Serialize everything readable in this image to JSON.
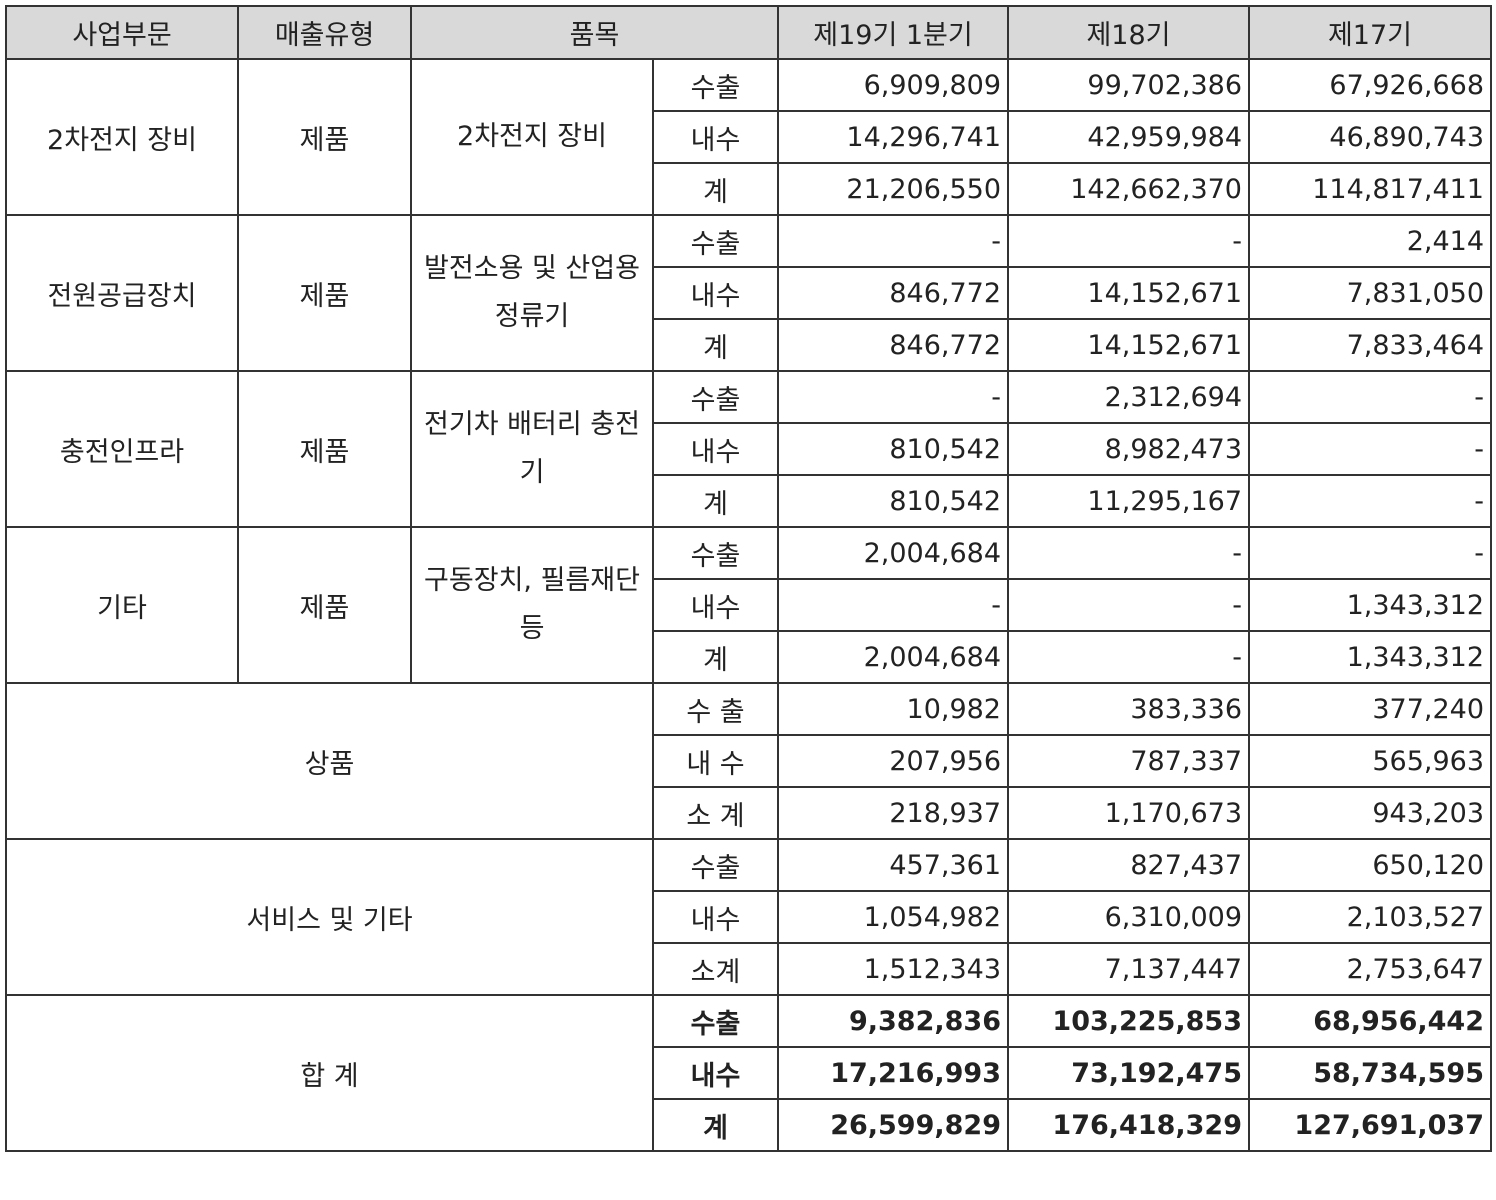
{
  "headers": {
    "segment": "사업부문",
    "sales_type": "매출유형",
    "item": "품목",
    "q19": "제19기 1분기",
    "p18": "제18기",
    "p17": "제17기"
  },
  "groups": [
    {
      "segment": "2차전지 장비",
      "sales_type": "제품",
      "item": "2차전지 장비",
      "rows": [
        {
          "label": "수출",
          "q19": "6,909,809",
          "p18": "99,702,386",
          "p17": "67,926,668"
        },
        {
          "label": "내수",
          "q19": "14,296,741",
          "p18": "42,959,984",
          "p17": "46,890,743"
        },
        {
          "label": "계",
          "q19": "21,206,550",
          "p18": "142,662,370",
          "p17": "114,817,411"
        }
      ]
    },
    {
      "segment": "전원공급장치",
      "sales_type": "제품",
      "item": "발전소용 및 산업용 정류기",
      "rows": [
        {
          "label": "수출",
          "q19": "-",
          "p18": "-",
          "p17": "2,414"
        },
        {
          "label": "내수",
          "q19": "846,772",
          "p18": "14,152,671",
          "p17": "7,831,050"
        },
        {
          "label": "계",
          "q19": "846,772",
          "p18": "14,152,671",
          "p17": "7,833,464"
        }
      ]
    },
    {
      "segment": "충전인프라",
      "sales_type": "제품",
      "item": "전기차 배터리 충전기",
      "rows": [
        {
          "label": "수출",
          "q19": "-",
          "p18": "2,312,694",
          "p17": "-"
        },
        {
          "label": "내수",
          "q19": "810,542",
          "p18": "8,982,473",
          "p17": "-"
        },
        {
          "label": "계",
          "q19": "810,542",
          "p18": "11,295,167",
          "p17": "-"
        }
      ]
    },
    {
      "segment": "기타",
      "sales_type": "제품",
      "item": "구동장치, 필름재단 등",
      "rows": [
        {
          "label": "수출",
          "q19": "2,004,684",
          "p18": "-",
          "p17": "-"
        },
        {
          "label": "내수",
          "q19": "-",
          "p18": "-",
          "p17": "1,343,312"
        },
        {
          "label": "계",
          "q19": "2,004,684",
          "p18": "-",
          "p17": "1,343,312"
        }
      ]
    },
    {
      "segment": "상품",
      "rows": [
        {
          "label": "수 출",
          "q19": "10,982",
          "p18": "383,336",
          "p17": "377,240"
        },
        {
          "label": "내 수",
          "q19": "207,956",
          "p18": "787,337",
          "p17": "565,963"
        },
        {
          "label": "소 계",
          "q19": "218,937",
          "p18": "1,170,673",
          "p17": "943,203"
        }
      ]
    },
    {
      "segment": "서비스 및 기타",
      "rows": [
        {
          "label": "수출",
          "q19": "457,361",
          "p18": "827,437",
          "p17": "650,120"
        },
        {
          "label": "내수",
          "q19": "1,054,982",
          "p18": "6,310,009",
          "p17": "2,103,527"
        },
        {
          "label": "소계",
          "q19": "1,512,343",
          "p18": "7,137,447",
          "p17": "2,753,647"
        }
      ]
    },
    {
      "segment": "합 계",
      "is_total": true,
      "rows": [
        {
          "label": "수출",
          "q19": "9,382,836",
          "p18": "103,225,853",
          "p17": "68,956,442"
        },
        {
          "label": "내수",
          "q19": "17,216,993",
          "p18": "73,192,475",
          "p17": "58,734,595"
        },
        {
          "label": "계",
          "q19": "26,599,829",
          "p18": "176,418,329",
          "p17": "127,691,037"
        }
      ]
    }
  ]
}
